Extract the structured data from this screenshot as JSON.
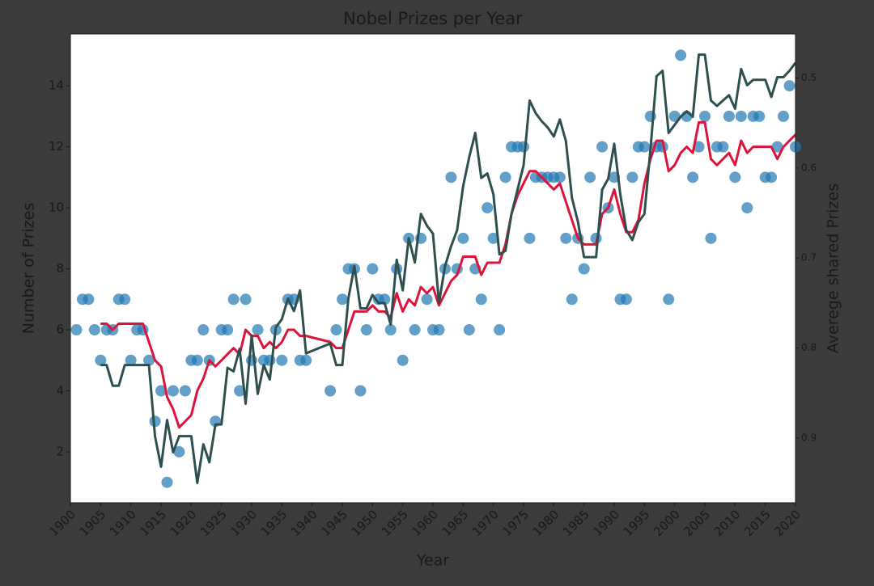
{
  "chart_data": {
    "type": "combo",
    "title": "Nobel Prizes per Year",
    "xlabel": "Year",
    "ylabel": "Number of Prizes",
    "y2label": "Averege shared Prizes",
    "xlim": [
      1900,
      2020
    ],
    "xticks": [
      1900,
      1905,
      1910,
      1915,
      1920,
      1925,
      1930,
      1935,
      1940,
      1945,
      1950,
      1955,
      1960,
      1965,
      1970,
      1975,
      1980,
      1985,
      1990,
      1995,
      2000,
      2005,
      2010,
      2015,
      2020
    ],
    "ylim": [
      0.33,
      15.7
    ],
    "yticks": [
      2,
      4,
      6,
      8,
      10,
      12,
      14
    ],
    "y2lim": [
      0.451,
      0.972
    ],
    "y2_inverted": true,
    "y2ticks": [
      0.5,
      0.6,
      0.7,
      0.8,
      0.9
    ],
    "series": [
      {
        "type": "scatter",
        "color": "#1f77b4",
        "x": [
          1901,
          1902,
          1903,
          1904,
          1905,
          1906,
          1907,
          1908,
          1909,
          1910,
          1911,
          1912,
          1913,
          1914,
          1915,
          1916,
          1917,
          1918,
          1919,
          1920,
          1921,
          1922,
          1923,
          1924,
          1925,
          1926,
          1927,
          1928,
          1929,
          1930,
          1931,
          1932,
          1933,
          1934,
          1935,
          1936,
          1937,
          1938,
          1939,
          1943,
          1944,
          1945,
          1946,
          1947,
          1948,
          1949,
          1950,
          1951,
          1952,
          1953,
          1954,
          1955,
          1956,
          1957,
          1958,
          1959,
          1960,
          1961,
          1962,
          1963,
          1964,
          1965,
          1966,
          1967,
          1968,
          1969,
          1970,
          1971,
          1972,
          1973,
          1974,
          1975,
          1976,
          1977,
          1978,
          1979,
          1980,
          1981,
          1982,
          1983,
          1984,
          1985,
          1986,
          1987,
          1988,
          1989,
          1990,
          1991,
          1992,
          1993,
          1994,
          1995,
          1996,
          1997,
          1998,
          1999,
          2000,
          2001,
          2002,
          2003,
          2004,
          2005,
          2006,
          2007,
          2008,
          2009,
          2010,
          2011,
          2012,
          2013,
          2014,
          2015,
          2016,
          2017,
          2018,
          2019,
          2020
        ],
        "values": [
          6,
          7,
          7,
          6,
          5,
          6,
          6,
          7,
          7,
          5,
          6,
          6,
          5,
          3,
          4,
          1,
          4,
          2,
          4,
          5,
          5,
          6,
          5,
          3,
          6,
          6,
          7,
          4,
          7,
          5,
          6,
          5,
          5,
          6,
          5,
          7,
          7,
          5,
          5,
          4,
          6,
          7,
          8,
          8,
          4,
          6,
          8,
          7,
          7,
          6,
          8,
          5,
          9,
          6,
          9,
          7,
          6,
          6,
          8,
          11,
          8,
          9,
          6,
          8,
          7,
          10,
          9,
          6,
          11,
          12,
          12,
          12,
          9,
          11,
          11,
          11,
          11,
          11,
          9,
          7,
          9,
          8,
          11,
          9,
          12,
          10,
          11,
          7,
          7,
          11,
          12,
          12,
          13,
          12,
          12,
          7,
          13,
          15,
          13,
          11,
          12,
          13,
          9,
          12,
          12,
          13,
          11,
          13,
          10,
          13,
          13,
          11,
          11,
          12,
          13,
          14,
          12
        ]
      },
      {
        "type": "line",
        "color": "#dc143c",
        "x": [
          1905,
          1906,
          1907,
          1908,
          1909,
          1910,
          1911,
          1912,
          1913,
          1914,
          1915,
          1916,
          1917,
          1918,
          1919,
          1920,
          1921,
          1922,
          1923,
          1924,
          1925,
          1926,
          1927,
          1928,
          1929,
          1930,
          1931,
          1932,
          1933,
          1934,
          1935,
          1936,
          1937,
          1938,
          1939,
          1943,
          1944,
          1945,
          1946,
          1947,
          1948,
          1949,
          1950,
          1951,
          1952,
          1953,
          1954,
          1955,
          1956,
          1957,
          1958,
          1959,
          1960,
          1961,
          1962,
          1963,
          1964,
          1965,
          1966,
          1967,
          1968,
          1969,
          1970,
          1971,
          1972,
          1973,
          1974,
          1975,
          1976,
          1977,
          1978,
          1979,
          1980,
          1981,
          1982,
          1983,
          1984,
          1985,
          1986,
          1987,
          1988,
          1989,
          1990,
          1991,
          1992,
          1993,
          1994,
          1995,
          1996,
          1997,
          1998,
          1999,
          2000,
          2001,
          2002,
          2003,
          2004,
          2005,
          2006,
          2007,
          2008,
          2009,
          2010,
          2011,
          2012,
          2013,
          2014,
          2015,
          2016,
          2017,
          2018,
          2019,
          2020
        ],
        "values": [
          6.2,
          6.2,
          6.0,
          6.2,
          6.2,
          6.2,
          6.2,
          6.2,
          5.6,
          5.0,
          4.8,
          3.8,
          3.4,
          2.8,
          3.0,
          3.2,
          4.0,
          4.4,
          5.0,
          4.8,
          5.0,
          5.2,
          5.4,
          5.2,
          6.0,
          5.8,
          5.8,
          5.4,
          5.6,
          5.4,
          5.6,
          6.0,
          6.0,
          5.8,
          5.8,
          5.6,
          5.4,
          5.4,
          6.0,
          6.6,
          6.6,
          6.6,
          6.8,
          6.6,
          6.6,
          6.4,
          7.2,
          6.6,
          7.0,
          6.8,
          7.4,
          7.2,
          7.4,
          6.8,
          7.2,
          7.6,
          7.8,
          8.4,
          8.4,
          8.4,
          7.8,
          8.2,
          8.2,
          8.2,
          8.8,
          9.8,
          10.4,
          10.8,
          11.2,
          11.2,
          11.0,
          10.8,
          10.6,
          10.8,
          10.2,
          9.6,
          9.0,
          8.8,
          8.8,
          8.8,
          9.8,
          10.0,
          10.6,
          9.8,
          9.2,
          9.2,
          9.6,
          10.8,
          11.6,
          12.2,
          12.2,
          11.2,
          11.4,
          11.8,
          12.0,
          11.8,
          12.8,
          12.8,
          11.6,
          11.4,
          11.6,
          11.8,
          11.4,
          12.2,
          11.8,
          12.0,
          12.0,
          12.0,
          12.0,
          11.6,
          12.0,
          12.2,
          12.4
        ]
      },
      {
        "type": "line",
        "axis": "y2",
        "color": "#2f4f4f",
        "x": [
          1905,
          1906,
          1907,
          1908,
          1909,
          1910,
          1911,
          1912,
          1913,
          1914,
          1915,
          1916,
          1917,
          1918,
          1919,
          1920,
          1921,
          1922,
          1923,
          1924,
          1925,
          1926,
          1927,
          1928,
          1929,
          1930,
          1931,
          1932,
          1933,
          1934,
          1935,
          1936,
          1937,
          1938,
          1939,
          1943,
          1944,
          1945,
          1946,
          1947,
          1948,
          1949,
          1950,
          1951,
          1952,
          1953,
          1954,
          1955,
          1956,
          1957,
          1958,
          1959,
          1960,
          1961,
          1962,
          1963,
          1964,
          1965,
          1966,
          1967,
          1968,
          1969,
          1970,
          1971,
          1972,
          1973,
          1974,
          1975,
          1976,
          1977,
          1978,
          1979,
          1980,
          1981,
          1982,
          1983,
          1984,
          1985,
          1986,
          1987,
          1988,
          1989,
          1990,
          1991,
          1992,
          1993,
          1994,
          1995,
          1996,
          1997,
          1998,
          1999,
          2000,
          2001,
          2002,
          2003,
          2004,
          2005,
          2006,
          2007,
          2008,
          2009,
          2010,
          2011,
          2012,
          2013,
          2014,
          2015,
          2016,
          2017,
          2018,
          2019,
          2020
        ],
        "values": [
          0.819,
          0.819,
          0.842,
          0.842,
          0.819,
          0.819,
          0.819,
          0.819,
          0.819,
          0.898,
          0.932,
          0.88,
          0.916,
          0.898,
          0.898,
          0.898,
          0.95,
          0.907,
          0.927,
          0.885,
          0.885,
          0.822,
          0.826,
          0.801,
          0.862,
          0.786,
          0.851,
          0.819,
          0.835,
          0.777,
          0.768,
          0.745,
          0.759,
          0.736,
          0.806,
          0.795,
          0.819,
          0.819,
          0.745,
          0.709,
          0.756,
          0.756,
          0.741,
          0.75,
          0.75,
          0.774,
          0.702,
          0.736,
          0.678,
          0.705,
          0.651,
          0.664,
          0.673,
          0.75,
          0.709,
          0.687,
          0.669,
          0.62,
          0.588,
          0.561,
          0.611,
          0.606,
          0.629,
          0.696,
          0.692,
          0.651,
          0.624,
          0.597,
          0.525,
          0.539,
          0.548,
          0.555,
          0.565,
          0.546,
          0.57,
          0.633,
          0.66,
          0.699,
          0.699,
          0.699,
          0.624,
          0.612,
          0.573,
          0.629,
          0.669,
          0.68,
          0.66,
          0.651,
          0.579,
          0.498,
          0.492,
          0.561,
          0.552,
          0.543,
          0.537,
          0.543,
          0.474,
          0.474,
          0.525,
          0.531,
          0.525,
          0.519,
          0.534,
          0.49,
          0.508,
          0.502,
          0.502,
          0.502,
          0.521,
          0.499,
          0.499,
          0.492,
          0.483
        ]
      }
    ]
  }
}
